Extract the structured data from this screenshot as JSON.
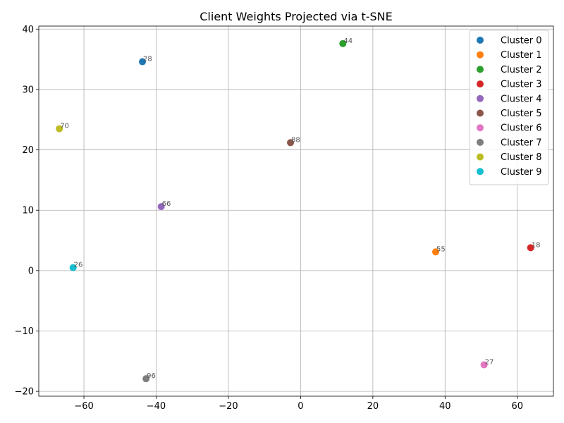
{
  "chart_data": {
    "type": "scatter",
    "title": "Client Weights Projected via t-SNE",
    "xlabel": "",
    "ylabel": "",
    "xlim": [
      -72.5,
      70
    ],
    "ylim": [
      -20.8,
      40.5
    ],
    "xticks": [
      -60,
      -40,
      -20,
      0,
      20,
      40,
      60
    ],
    "yticks": [
      -20,
      -10,
      0,
      10,
      20,
      30,
      40
    ],
    "grid": true,
    "legend_position": "top-right",
    "series": [
      {
        "name": "Cluster 0",
        "color": "#1f77b4",
        "points": [
          {
            "x": -43.8,
            "y": 34.6,
            "label": "28"
          }
        ]
      },
      {
        "name": "Cluster 1",
        "color": "#ff7f0e",
        "points": [
          {
            "x": 37.4,
            "y": 3.1,
            "label": "55"
          }
        ]
      },
      {
        "name": "Cluster 2",
        "color": "#2ca02c",
        "points": [
          {
            "x": 11.7,
            "y": 37.6,
            "label": "44"
          }
        ]
      },
      {
        "name": "Cluster 3",
        "color": "#d62728",
        "points": [
          {
            "x": 63.7,
            "y": 3.8,
            "label": "18"
          }
        ]
      },
      {
        "name": "Cluster 4",
        "color": "#9467bd",
        "points": [
          {
            "x": -38.6,
            "y": 10.6,
            "label": "66"
          }
        ]
      },
      {
        "name": "Cluster 5",
        "color": "#8c564b",
        "points": [
          {
            "x": -2.8,
            "y": 21.2,
            "label": "88"
          }
        ]
      },
      {
        "name": "Cluster 6",
        "color": "#e377c2",
        "points": [
          {
            "x": 50.8,
            "y": -15.6,
            "label": "27"
          }
        ]
      },
      {
        "name": "Cluster 7",
        "color": "#7f7f7f",
        "points": [
          {
            "x": -42.8,
            "y": -17.9,
            "label": "96"
          }
        ]
      },
      {
        "name": "Cluster 8",
        "color": "#bcbd22",
        "points": [
          {
            "x": -66.8,
            "y": 23.5,
            "label": "70"
          }
        ]
      },
      {
        "name": "Cluster 9",
        "color": "#17becf",
        "points": [
          {
            "x": -63.0,
            "y": 0.5,
            "label": "26"
          }
        ]
      }
    ]
  }
}
